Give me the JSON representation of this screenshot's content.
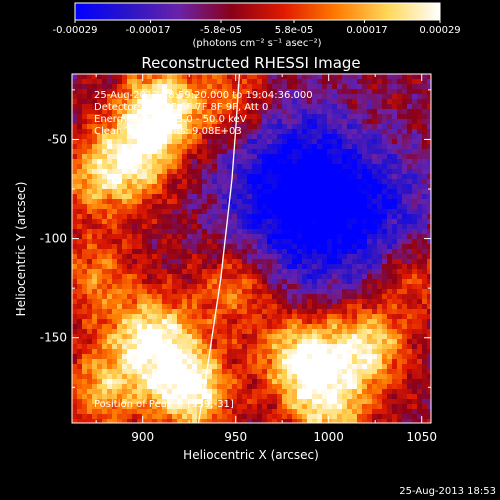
{
  "chart_data": {
    "type": "heatmap",
    "title": "Reconstructed RHESSI Image",
    "xlabel": "Heliocentric X (arcsec)",
    "ylabel": "Heliocentric Y (arcsec)",
    "xlim": [
      862,
      1055
    ],
    "ylim": [
      -193,
      -17
    ],
    "xticks": [
      900,
      950,
      1000,
      1050
    ],
    "yticks": [
      -50,
      -100,
      -150
    ],
    "grid": false,
    "colorbar": {
      "position": "top",
      "range": [
        -0.00029,
        0.00029
      ],
      "tick_labels": [
        "-0.00029",
        "-0.00017",
        "-5.8e-05",
        "5.8e-05",
        "0.00017",
        "0.00029"
      ],
      "tick_values": [
        -0.00029,
        -0.00017,
        -5.8e-05,
        5.8e-05,
        0.00017,
        0.00029
      ],
      "unit_label": "(photons cm⁻² s⁻¹ asec⁻²)",
      "colormap": [
        "#0000ff",
        "#2a14c8",
        "#6a22a8",
        "#8a0018",
        "#e01a00",
        "#ff7a00",
        "#ffd85a",
        "#ffffff"
      ]
    },
    "annotations": [
      "25-Aug-2013 18:59:20.000 to 19:04:36.000",
      "Detectors: 3F 5F 6F 7F 8F 9F, Att 0",
      "Energy Range: 25.0 - 50.0 keV",
      "Clean   Total counts: 9.08E+03"
    ],
    "peak_label": "Position of Peak = [939,-31]",
    "peak_position": [
      939,
      -31
    ],
    "limb_curve": [
      [
        930,
        -193
      ],
      [
        934,
        -170
      ],
      [
        938,
        -145
      ],
      [
        942,
        -120
      ],
      [
        945,
        -95
      ],
      [
        948,
        -70
      ],
      [
        950,
        -45
      ],
      [
        952,
        -17
      ]
    ],
    "bright_regions": [
      {
        "x": 910,
        "y": -35,
        "intensity": 1.0
      },
      {
        "x": 895,
        "y": -60,
        "intensity": 0.7
      },
      {
        "x": 875,
        "y": -70,
        "intensity": 0.5
      },
      {
        "x": 905,
        "y": -150,
        "intensity": 0.9
      },
      {
        "x": 925,
        "y": -175,
        "intensity": 1.0
      },
      {
        "x": 880,
        "y": -175,
        "intensity": 0.6
      },
      {
        "x": 985,
        "y": -160,
        "intensity": 0.9
      },
      {
        "x": 1020,
        "y": -155,
        "intensity": 0.8
      },
      {
        "x": 1000,
        "y": -185,
        "intensity": 0.7
      },
      {
        "x": 950,
        "y": -125,
        "intensity": 0.5
      },
      {
        "x": 875,
        "y": -120,
        "intensity": 0.45
      },
      {
        "x": 950,
        "y": -30,
        "intensity": 0.45
      },
      {
        "x": 1045,
        "y": -120,
        "intensity": 0.4
      }
    ],
    "dim_regions": [
      {
        "x": 1000,
        "y": -75,
        "intensity": 1.0
      },
      {
        "x": 1030,
        "y": -90,
        "intensity": 0.9
      },
      {
        "x": 975,
        "y": -55,
        "intensity": 0.8
      },
      {
        "x": 990,
        "y": -105,
        "intensity": 0.7
      },
      {
        "x": 965,
        "y": -85,
        "intensity": 0.6
      }
    ]
  },
  "footer": {
    "timestamp": "25-Aug-2013 18:53"
  }
}
